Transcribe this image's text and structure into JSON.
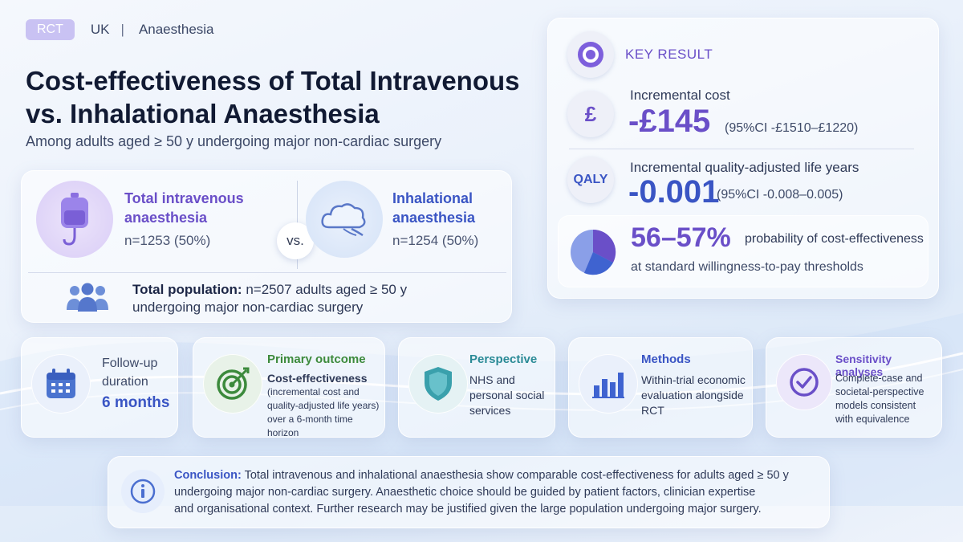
{
  "tags": {
    "design": "RCT",
    "country": "UK",
    "separator": "|",
    "field": "Anaesthesia"
  },
  "title": "Cost-effectiveness of Total Intravenous vs. Inhalational Anaesthesia",
  "subtitle": "Among adults aged ≥ 50 y undergoing major non-cardiac surgery",
  "comparison": {
    "arm1": {
      "title_line1": "Total intravenous",
      "title_line2": "anaesthesia",
      "n": "n=1253 (50%)",
      "icon": "iv-bag-icon",
      "color": "#6a4fc8"
    },
    "vs": "vs.",
    "arm2": {
      "title_line1": "Inhalational",
      "title_line2": "anaesthesia",
      "n": "n=1254 (50%)",
      "icon": "cloud-gas-icon",
      "color": "#3a55c4"
    },
    "population": {
      "label": "Total population:",
      "line1": "n=2507 adults aged ≥ 50 y",
      "line2": "undergoing major non-cardiac surgery",
      "icon": "people-icon"
    }
  },
  "key_result": {
    "label": "KEY RESULT",
    "cost": {
      "icon_text": "£",
      "label": "Incremental cost",
      "value": "-£145",
      "ci": "(95%CI -£1510–£1220)"
    },
    "qaly": {
      "icon_text": "QALY",
      "label": "Incremental quality-adjusted life years",
      "value": "-0.001",
      "ci": "(95%CI -0.008–0.005)"
    },
    "probability": {
      "value": "56–57%",
      "label": "probability of cost-effectiveness",
      "sub": "at standard willingness-to-pay thresholds",
      "icon": "pie-chart-icon"
    }
  },
  "cards": {
    "followup": {
      "label_line1": "Follow-up",
      "label_line2": "duration",
      "value": "6 months",
      "icon": "calendar-icon"
    },
    "primary": {
      "head": "Primary outcome",
      "line1": "Cost-effectiveness",
      "line2": "(incremental cost and",
      "line3": "quality-adjusted life years)",
      "line4": "over a 6-month time horizon",
      "icon": "target-icon",
      "color": "#3c8a3c"
    },
    "perspective": {
      "head": "Perspective",
      "line1": "NHS and",
      "line2": "personal social",
      "line3": "services",
      "icon": "shield-icon",
      "color": "#2a8a96"
    },
    "methods": {
      "head": "Methods",
      "line1": "Within-trial economic",
      "line2": "evaluation alongside",
      "line3": "RCT",
      "icon": "bar-chart-icon",
      "color": "#3a55c4"
    },
    "sensitivity": {
      "head": "Sensitivity analyses",
      "line1": "Complete-case and",
      "line2": "societal-perspective",
      "line3": "models consistent",
      "line4": "with equivalence",
      "icon": "check-circle-icon",
      "color": "#6a4fc8"
    }
  },
  "conclusion": {
    "label": "Conclusion:",
    "line1": "Total intravenous and inhalational anaesthesia show comparable cost-effectiveness for adults aged ≥ 50 y",
    "line2": "undergoing major non-cardiac surgery. Anaesthetic choice should be guided by patient factors, clinician expertise",
    "line3": "and organisational context. Further research may be justified given the large population undergoing major surgery.",
    "icon": "info-icon"
  }
}
